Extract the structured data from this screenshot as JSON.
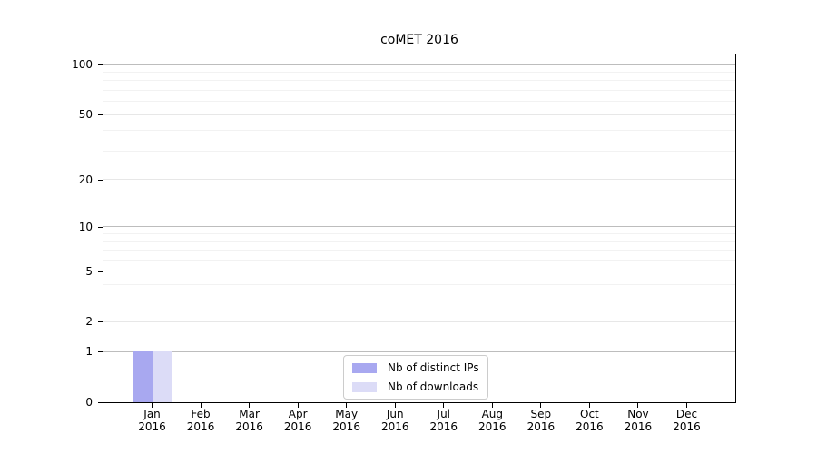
{
  "chart_data": {
    "type": "bar",
    "title": "coMET 2016",
    "categories": [
      "Jan 2016",
      "Feb 2016",
      "Mar 2016",
      "Apr 2016",
      "May 2016",
      "Jun 2016",
      "Jul 2016",
      "Aug 2016",
      "Sep 2016",
      "Oct 2016",
      "Nov 2016",
      "Dec 2016"
    ],
    "series": [
      {
        "name": "Nb of distinct IPs",
        "color": "#a8a8f0",
        "values": [
          1,
          0,
          0,
          0,
          0,
          0,
          0,
          0,
          0,
          0,
          0,
          0
        ]
      },
      {
        "name": "Nb of downloads",
        "color": "#dcdcf7",
        "values": [
          1,
          0,
          0,
          0,
          0,
          0,
          0,
          0,
          0,
          0,
          0,
          0
        ]
      }
    ],
    "xlabel": "",
    "ylabel": "",
    "y_scale": "log1p",
    "ylim": [
      0,
      115
    ],
    "y_ticks": [
      0,
      1,
      2,
      5,
      10,
      20,
      50,
      100
    ],
    "y_minor_gridlines": [
      3,
      4,
      6,
      7,
      8,
      9,
      30,
      40,
      60,
      70,
      80,
      90
    ],
    "grid": true,
    "legend_position": "lower center"
  },
  "styles": {
    "decade_grid_color": "#bdbdbd",
    "labeled_grid_color": "#e7e7e7",
    "minor_grid_color": "#f2f2f2",
    "axis_color": "#000000",
    "background_color": "#ffffff"
  }
}
